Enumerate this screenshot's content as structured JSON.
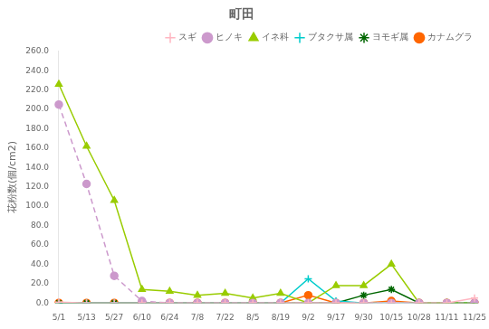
{
  "chart_data": {
    "type": "line",
    "title": "町田",
    "y_label": "花粉数(個/cm2)",
    "categories": [
      "5/1",
      "5/13",
      "5/27",
      "6/10",
      "6/24",
      "7/8",
      "7/22",
      "8/5",
      "8/19",
      "9/2",
      "9/17",
      "9/30",
      "10/15",
      "10/28",
      "11/11",
      "11/25"
    ],
    "series": [
      {
        "name": "スギ",
        "color": "#ffb6c1",
        "marker": "plus",
        "line_style": "solid",
        "values": [
          1,
          0,
          0,
          0,
          0,
          0,
          0,
          0,
          0,
          0,
          0,
          0,
          0,
          0,
          0,
          5
        ]
      },
      {
        "name": "ヒノキ",
        "color": "#cc99cc",
        "marker": "circle",
        "line_style": "dashed",
        "values": [
          205,
          123,
          28,
          2,
          0,
          0,
          0,
          0,
          0,
          0,
          0,
          0,
          0,
          0,
          0,
          0
        ]
      },
      {
        "name": "イネ科",
        "color": "#99cc00",
        "marker": "triangle",
        "line_style": "solid",
        "values": [
          226,
          162,
          106,
          14,
          12,
          8,
          10,
          5,
          10,
          0,
          18,
          18,
          40,
          0,
          0,
          0
        ]
      },
      {
        "name": "ブタクサ属",
        "color": "#00cccc",
        "marker": "plus",
        "line_style": "solid",
        "values": [
          0,
          0,
          0,
          0,
          0,
          0,
          0,
          0,
          0,
          25,
          2,
          0,
          0,
          0,
          0,
          0
        ]
      },
      {
        "name": "ヨモギ属",
        "color": "#006600",
        "marker": "star",
        "line_style": "solid",
        "values": [
          0,
          0,
          0,
          0,
          0,
          0,
          0,
          0,
          0,
          0,
          0,
          8,
          14,
          0,
          0,
          0
        ]
      },
      {
        "name": "カナムグラ",
        "color": "#ff6600",
        "marker": "circle",
        "line_style": "solid",
        "values": [
          0,
          0,
          0,
          0,
          0,
          0,
          0,
          0,
          0,
          8,
          0,
          0,
          2,
          0,
          0,
          0
        ]
      }
    ],
    "ylim": [
      0,
      260
    ],
    "yticks": [
      {
        "value": 0,
        "label": "0.0"
      },
      {
        "value": 20,
        "label": "20.0"
      },
      {
        "value": 40,
        "label": "40.0"
      },
      {
        "value": 60,
        "label": "60.0"
      },
      {
        "value": 80,
        "label": "80.0"
      },
      {
        "value": 100,
        "label": "100.0"
      },
      {
        "value": 120,
        "label": "120.0"
      },
      {
        "value": 140,
        "label": "140.0"
      },
      {
        "value": 160,
        "label": "160.0"
      },
      {
        "value": 180,
        "label": "180.0"
      },
      {
        "value": 200,
        "label": "200.0"
      },
      {
        "value": 220,
        "label": "220.0"
      },
      {
        "value": 240,
        "label": "240.0"
      },
      {
        "value": 260,
        "label": "260.0"
      }
    ],
    "grid": false,
    "legend": "upper right"
  }
}
